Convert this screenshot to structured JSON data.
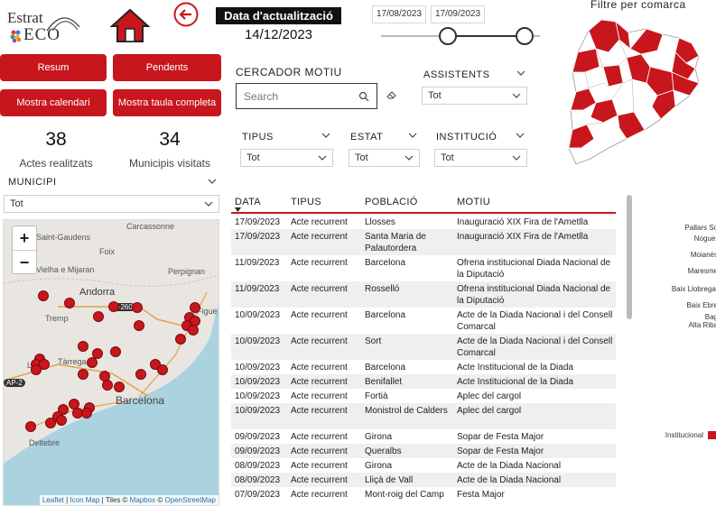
{
  "logo": {
    "line1": "Estrat",
    "line2": "ECO"
  },
  "update": {
    "title": "Data d'actualització",
    "date": "14/12/2023"
  },
  "date_range": {
    "start": "17/08/2023",
    "end": "17/09/2023"
  },
  "map_filter": {
    "title": "Filtre per comarca"
  },
  "buttons": {
    "resum": "Resum",
    "pendents": "Pendents",
    "calendari": "Mostra calendari",
    "taula": "Mostra taula completa"
  },
  "kpis": {
    "actes_value": "38",
    "actes_label": "Actes realitzats",
    "municipis_value": "34",
    "municipis_label": "Municipis visitats"
  },
  "filters": {
    "municipi": {
      "label": "MUNICIPI",
      "value": "Tot"
    },
    "cercador": {
      "label": "CERCADOR MOTIU",
      "placeholder": "Search"
    },
    "assistents": {
      "label": "ASSISTENTS",
      "value": "Tot"
    },
    "tipus": {
      "label": "TIPUS",
      "value": "Tot"
    },
    "estat": {
      "label": "ESTAT",
      "value": "Tot"
    },
    "institucio": {
      "label": "INSTITUCIÓ",
      "value": "Tot"
    }
  },
  "leaflet_map": {
    "places": {
      "carcassonne": "Carcassonne",
      "saint_gaudens": "Saint-Gaudens",
      "foix": "Foix",
      "vielha": "Vielha e Mijaran",
      "perpignan": "Perpignan",
      "andorra": "Andorra",
      "tremp": "Tremp",
      "figueres": "Figue",
      "lleida": "Lleida",
      "tarrega": "Tàrrega",
      "barcelona": "Barcelona",
      "deltebre": "Deltebre",
      "road_n260": "N-260",
      "road_ap2": "AP-2"
    },
    "zoom_in": "+",
    "zoom_out": "−",
    "attribution": {
      "leaflet": "Leaflet",
      "iconmap": "Icon Map",
      "tiles": "Tiles ©",
      "mapbox": "Mapbox",
      "copy": "©",
      "osm": "OpenStreetMap"
    },
    "marker_color": "#c8161d"
  },
  "table": {
    "headers": {
      "data": "DATA",
      "tipus": "TIPUS",
      "poblacio": "POBLACIÓ",
      "motiu": "MOTIU"
    },
    "rows": [
      {
        "data": "17/09/2023",
        "tipus": "Acte recurrent",
        "poblacio": "Llosses",
        "motiu": "Inauguració XIX Fira de l'Ametlla"
      },
      {
        "data": "17/09/2023",
        "tipus": "Acte recurrent",
        "poblacio": "Santa Maria de Palautordera",
        "motiu": "Inauguració XIX Fira de l'Ametlla"
      },
      {
        "data": "11/09/2023",
        "tipus": "Acte recurrent",
        "poblacio": "Barcelona",
        "motiu": "Ofrena institucional Diada Nacional de la Diputació"
      },
      {
        "data": "11/09/2023",
        "tipus": "Acte recurrent",
        "poblacio": "Rosselló",
        "motiu": "Ofrena institucional Diada Nacional de la Diputació"
      },
      {
        "data": "10/09/2023",
        "tipus": "Acte recurrent",
        "poblacio": "Barcelona",
        "motiu": "Acte de la Diada Nacional i del Consell Comarcal"
      },
      {
        "data": "10/09/2023",
        "tipus": "Acte recurrent",
        "poblacio": "Sort",
        "motiu": "Acte de la Diada Nacional i del Consell Comarcal"
      },
      {
        "data": "10/09/2023",
        "tipus": "Acte recurrent",
        "poblacio": "Barcelona",
        "motiu": "Acte Institucional de la Diada"
      },
      {
        "data": "10/09/2023",
        "tipus": "Acte recurrent",
        "poblacio": "Benifallet",
        "motiu": "Acte Institucional de la Diada"
      },
      {
        "data": "10/09/2023",
        "tipus": "Acte recurrent",
        "poblacio": "Fortià",
        "motiu": "Aplec del cargol"
      },
      {
        "data": "10/09/2023",
        "tipus": "Acte recurrent",
        "poblacio": "Monistrol de Calders",
        "motiu": "Aplec del cargol"
      },
      {
        "data": "09/09/2023",
        "tipus": "Acte recurrent",
        "poblacio": "Girona",
        "motiu": "Sopar de Festa Major"
      },
      {
        "data": "09/09/2023",
        "tipus": "Acte recurrent",
        "poblacio": "Queralbs",
        "motiu": "Sopar de Festa Major"
      },
      {
        "data": "08/09/2023",
        "tipus": "Acte recurrent",
        "poblacio": "Girona",
        "motiu": "Acte de la Diada Nacional"
      },
      {
        "data": "08/09/2023",
        "tipus": "Acte recurrent",
        "poblacio": "Lliçà de Vall",
        "motiu": "Acte de la Diada Nacional"
      },
      {
        "data": "07/09/2023",
        "tipus": "Acte recurrent",
        "poblacio": "Mont-roig del Camp",
        "motiu": "Festa Major"
      }
    ]
  },
  "side_chart": {
    "labels": [
      "Pallars So",
      "Noguer",
      "Moianès",
      "Maresme",
      "Baix Llobregat",
      "Baix Ebre",
      "Bag",
      "Alta Riba",
      "Institucional"
    ]
  },
  "colors": {
    "accent": "#c8161d",
    "text": "#222222"
  }
}
